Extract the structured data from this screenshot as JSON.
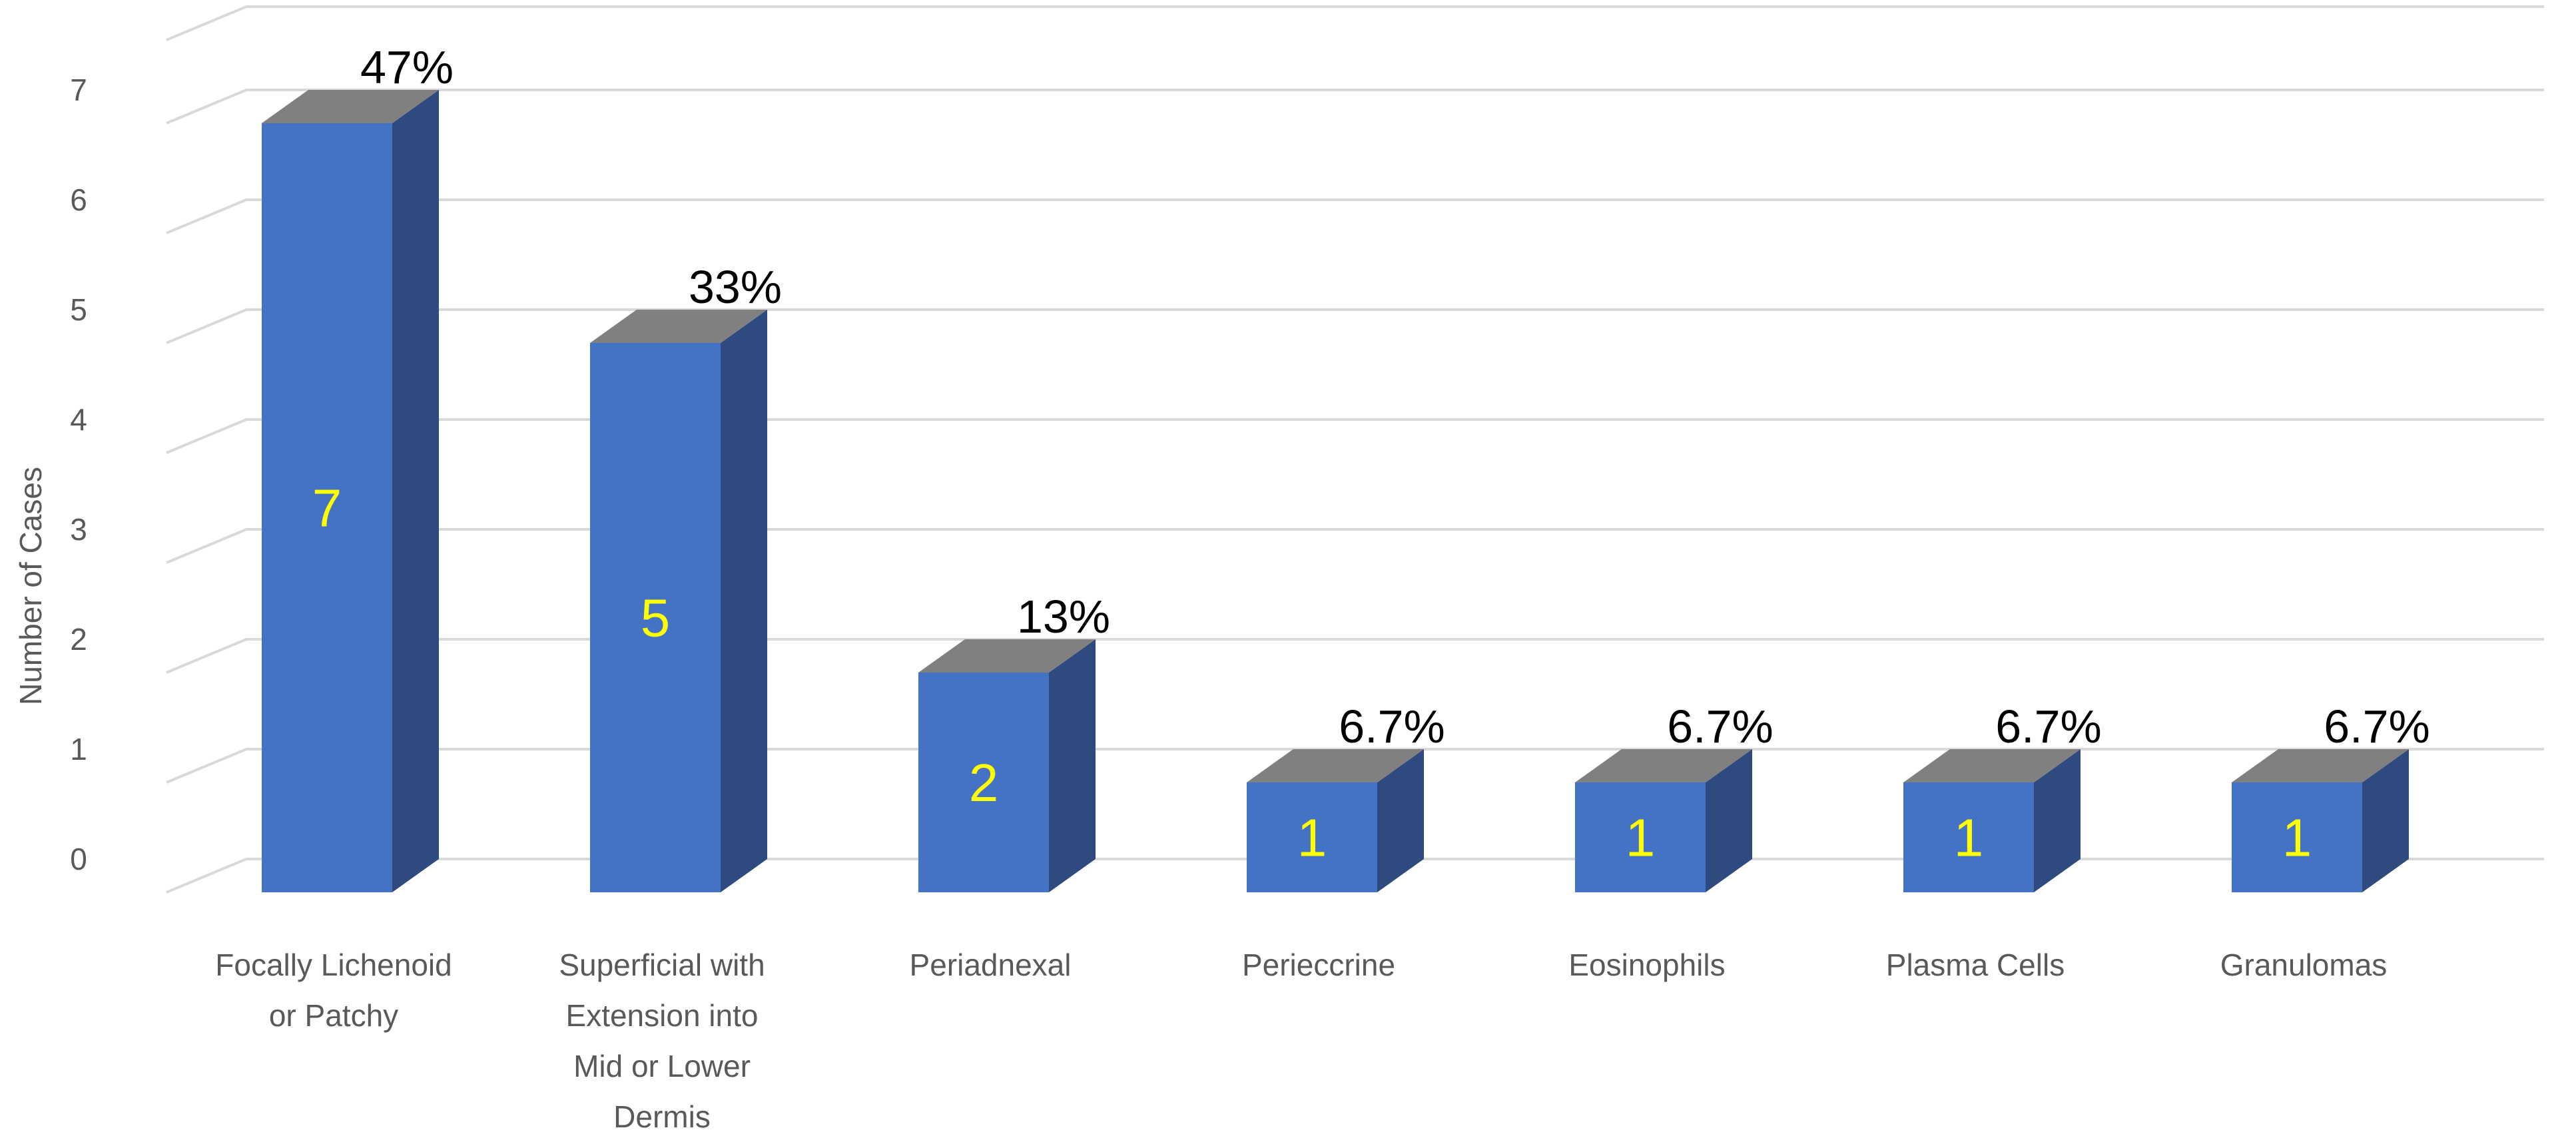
{
  "chart_data": {
    "type": "bar",
    "title": "",
    "xlabel": "",
    "ylabel": "Number of Cases",
    "ylim": [
      0,
      7
    ],
    "yticks": [
      "0",
      "1",
      "2",
      "3",
      "4",
      "5",
      "6",
      "7"
    ],
    "grid": true,
    "legend": "none",
    "three_d": true,
    "categories": [
      "Focally Lichenoid or Patchy",
      "Superficial with Extension into Mid or Lower Dermis",
      "Periadnexal",
      "Periеccrine",
      "Eosinophils",
      "Plasma Cells",
      "Granulomas"
    ],
    "category_label_lines": [
      [
        "Focally Lichenoid",
        "or Patchy"
      ],
      [
        "Superficial with",
        "Extension into",
        "Mid or Lower",
        "Dermis"
      ],
      [
        "Periadnexal"
      ],
      [
        "Periеccrine"
      ],
      [
        "Eosinophils"
      ],
      [
        "Plasma Cells"
      ],
      [
        "Granulomas"
      ]
    ],
    "values": [
      7,
      5,
      2,
      1,
      1,
      1,
      1
    ],
    "value_labels": [
      "7",
      "5",
      "2",
      "1",
      "1",
      "1",
      "1"
    ],
    "percent_labels": [
      "47%",
      "33%",
      "13%",
      "6.7%",
      "6.7%",
      "6.7%",
      "6.7%"
    ],
    "colors": {
      "bar_front": "#4472c4",
      "bar_side": "#2f4a7f",
      "bar_top": "#808080",
      "value_label": "#ffff00",
      "percent_label": "#000000",
      "axis_text": "#595959",
      "grid": "#d9d9d9"
    }
  }
}
